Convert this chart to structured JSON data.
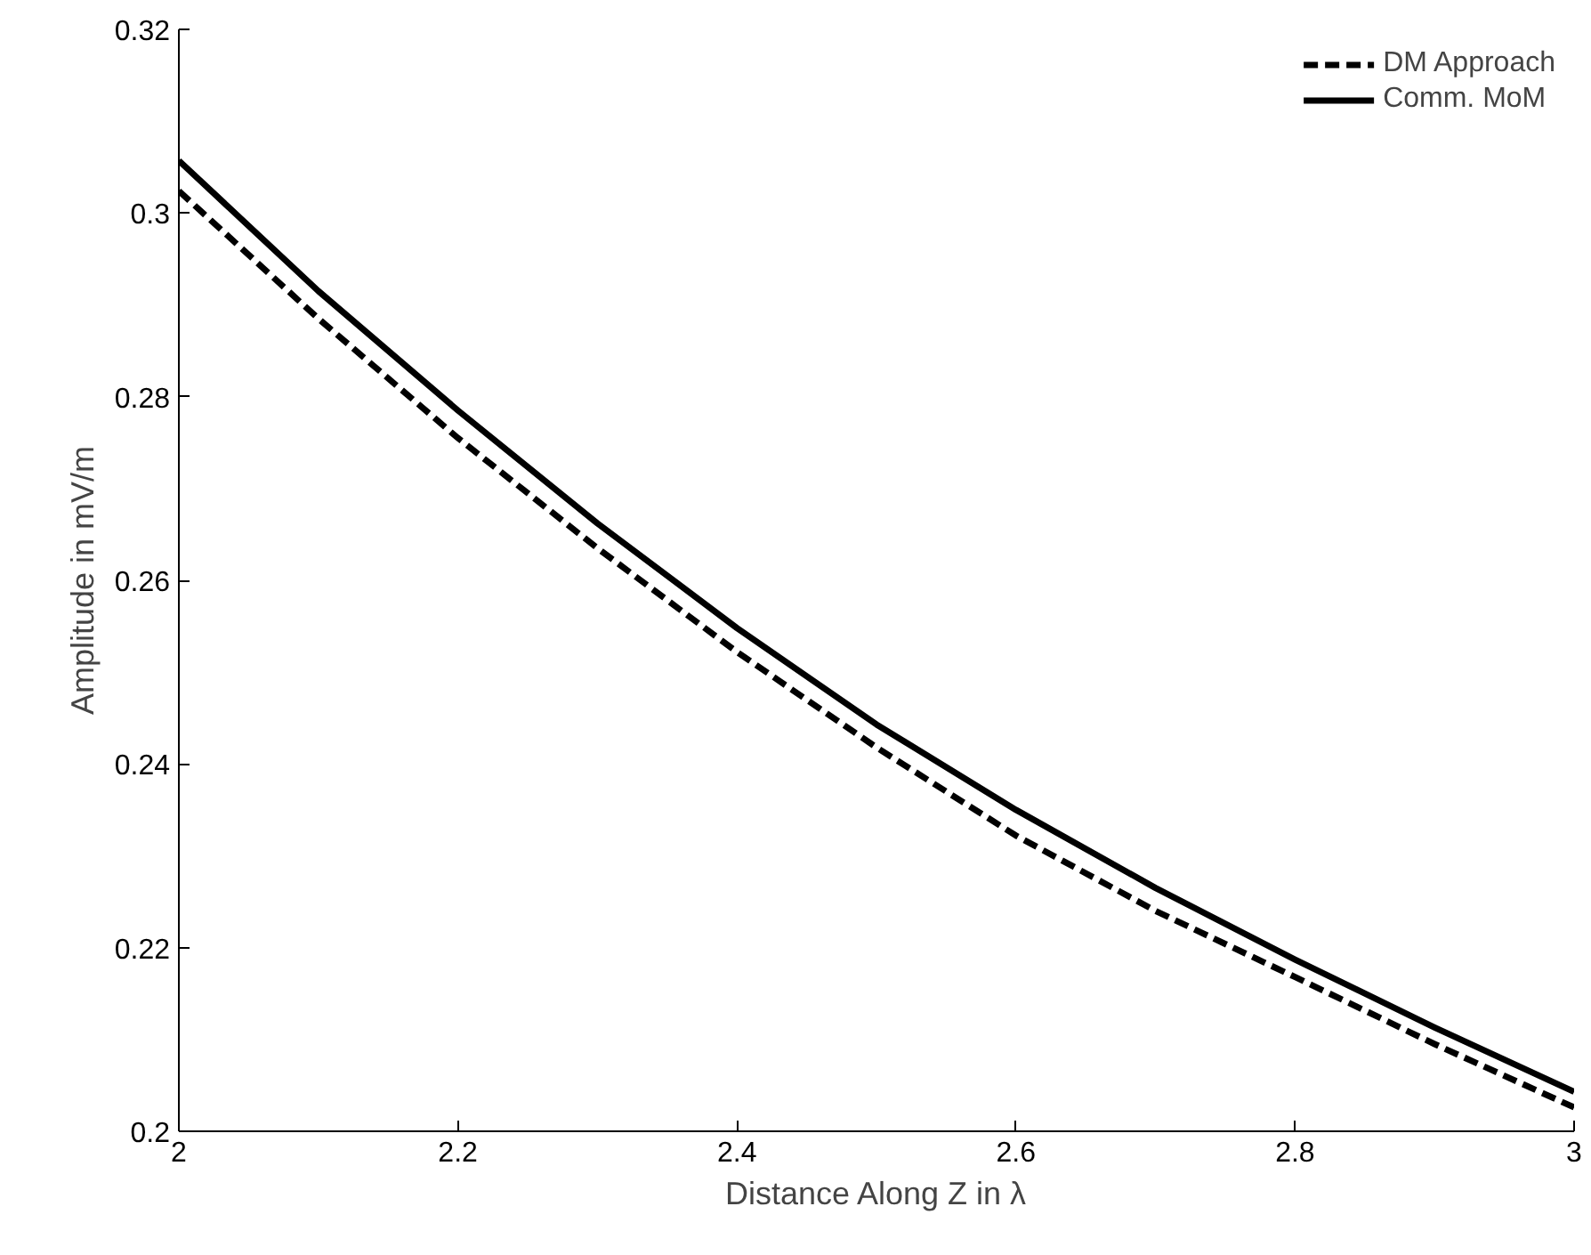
{
  "chart_data": {
    "type": "line",
    "xlabel": "Distance Along Z in λ",
    "ylabel": "Amplitude in mV/m",
    "x": [
      2.0,
      2.1,
      2.2,
      2.3,
      2.4,
      2.5,
      2.6,
      2.7,
      2.8,
      2.9,
      3.0
    ],
    "series": [
      {
        "name": "DM Approach",
        "color": "#000000",
        "line_style": "dashed",
        "values": [
          0.3024,
          0.2885,
          0.2755,
          0.2635,
          0.2522,
          0.2418,
          0.2322,
          0.224,
          0.2168,
          0.2095,
          0.2026
        ]
      },
      {
        "name": "Comm. MoM",
        "color": "#000000",
        "line_style": "solid",
        "values": [
          0.3057,
          0.2915,
          0.2785,
          0.2662,
          0.2548,
          0.2443,
          0.235,
          0.2265,
          0.2187,
          0.2113,
          0.2043
        ]
      }
    ],
    "xlim": [
      2,
      3
    ],
    "ylim": [
      0.2,
      0.32
    ],
    "xticks": [
      2,
      2.2,
      2.4,
      2.6,
      2.8,
      3
    ],
    "yticks": [
      0.2,
      0.22,
      0.24,
      0.26,
      0.28,
      0.3,
      0.32
    ],
    "grid": false,
    "legend": "top right",
    "marker": "none"
  }
}
